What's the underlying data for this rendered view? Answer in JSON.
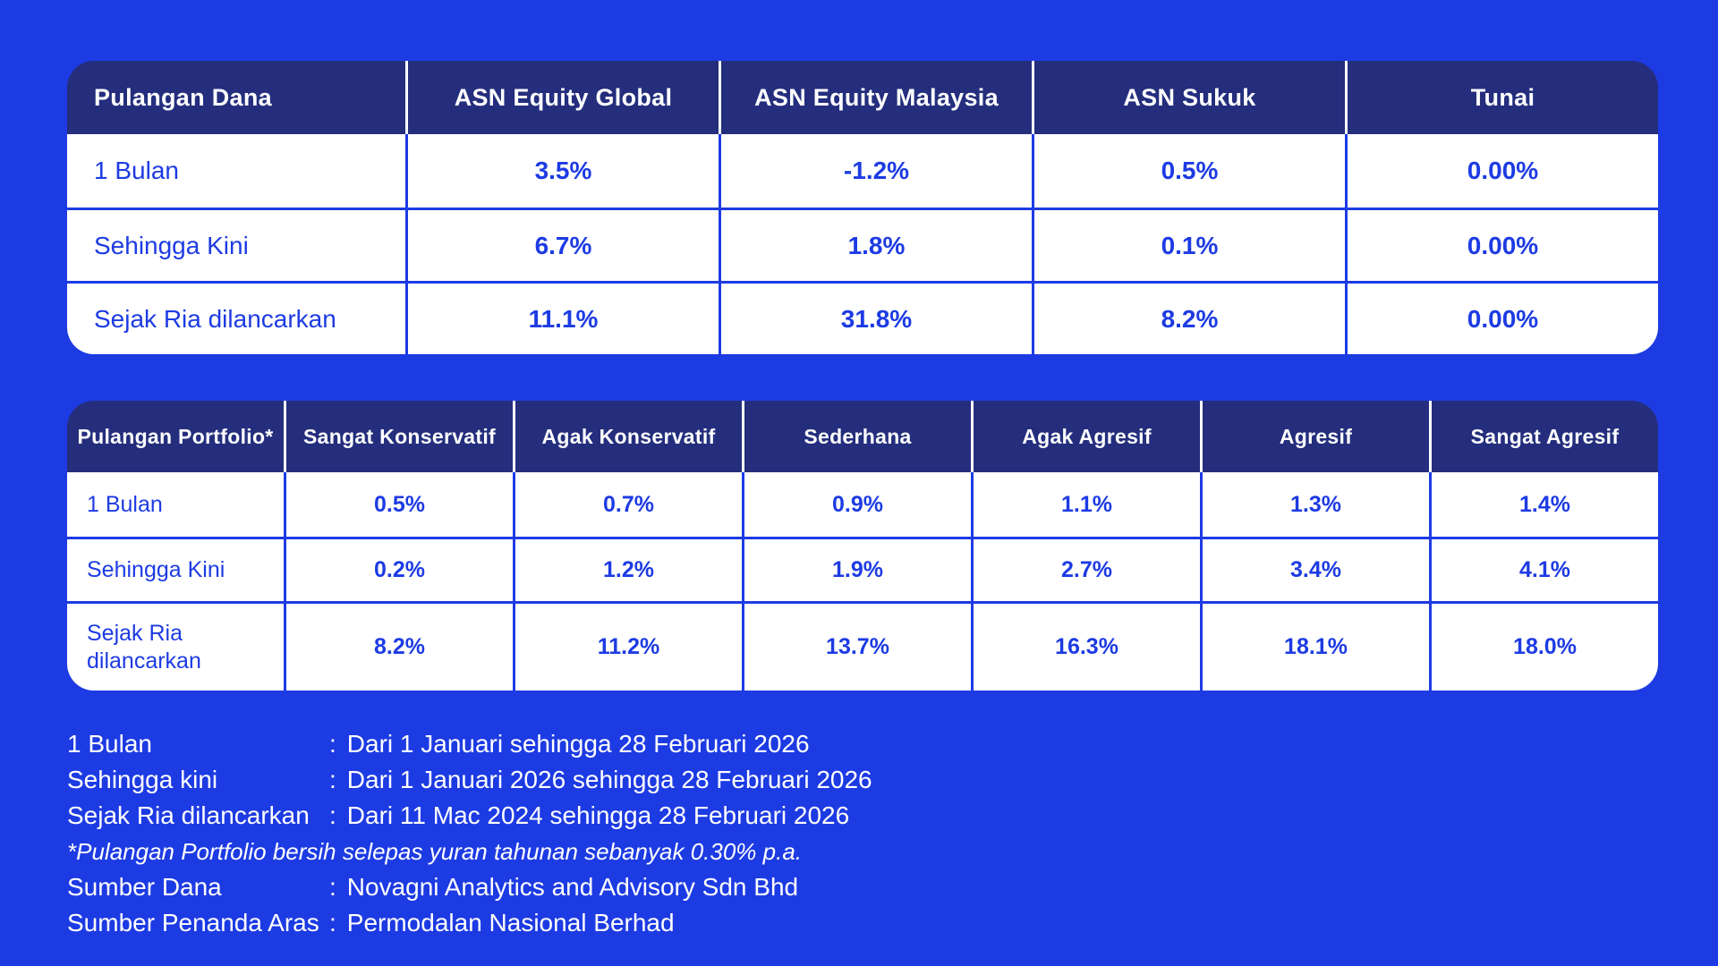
{
  "colors": {
    "background_blue": "#1d3be3",
    "table_header_navy": "#242e7d",
    "cell_background": "#ffffff",
    "cell_text_blue": "#1d3be3",
    "header_text": "#ffffff",
    "note_text": "#ffffff"
  },
  "chart_data": [
    {
      "type": "table",
      "title": "Pulangan Dana",
      "columns": [
        "Pulangan Dana",
        "ASN Equity Global",
        "ASN Equity Malaysia",
        "ASN Sukuk",
        "Tunai"
      ],
      "rows": [
        [
          "1 Bulan",
          "3.5%",
          "-1.2%",
          "0.5%",
          "0.00%"
        ],
        [
          "Sehingga Kini",
          "6.7%",
          "1.8%",
          "0.1%",
          "0.00%"
        ],
        [
          "Sejak Ria dilancarkan",
          "11.1%",
          "31.8%",
          "8.2%",
          "0.00%"
        ]
      ]
    },
    {
      "type": "table",
      "title": "Pulangan Portfolio*",
      "columns": [
        "Pulangan Portfolio*",
        "Sangat Konservatif",
        "Agak Konservatif",
        "Sederhana",
        "Agak Agresif",
        "Agresif",
        "Sangat Agresif"
      ],
      "rows": [
        [
          "1 Bulan",
          "0.5%",
          "0.7%",
          "0.9%",
          "1.1%",
          "1.3%",
          "1.4%"
        ],
        [
          "Sehingga Kini",
          "0.2%",
          "1.2%",
          "1.9%",
          "2.7%",
          "3.4%",
          "4.1%"
        ],
        [
          "Sejak Ria dilancarkan",
          "8.2%",
          "11.2%",
          "13.7%",
          "16.3%",
          "18.1%",
          "18.0%"
        ]
      ]
    }
  ],
  "footnotes": {
    "colon": ":",
    "definitions": [
      {
        "label": "1 Bulan",
        "value": "Dari 1 Januari sehingga 28 Februari 2026"
      },
      {
        "label": "Sehingga kini",
        "value": "Dari 1 Januari 2026 sehingga 28 Februari 2026"
      },
      {
        "label": "Sejak Ria dilancarkan",
        "value": "Dari 11 Mac 2024 sehingga 28 Februari 2026"
      }
    ],
    "disclaimer": "*Pulangan Portfolio bersih selepas yuran tahunan sebanyak 0.30% p.a.",
    "sources": [
      {
        "label": "Sumber Dana",
        "value": "Novagni Analytics and Advisory Sdn Bhd"
      },
      {
        "label": "Sumber Penanda Aras",
        "value": "Permodalan Nasional Berhad"
      }
    ]
  }
}
